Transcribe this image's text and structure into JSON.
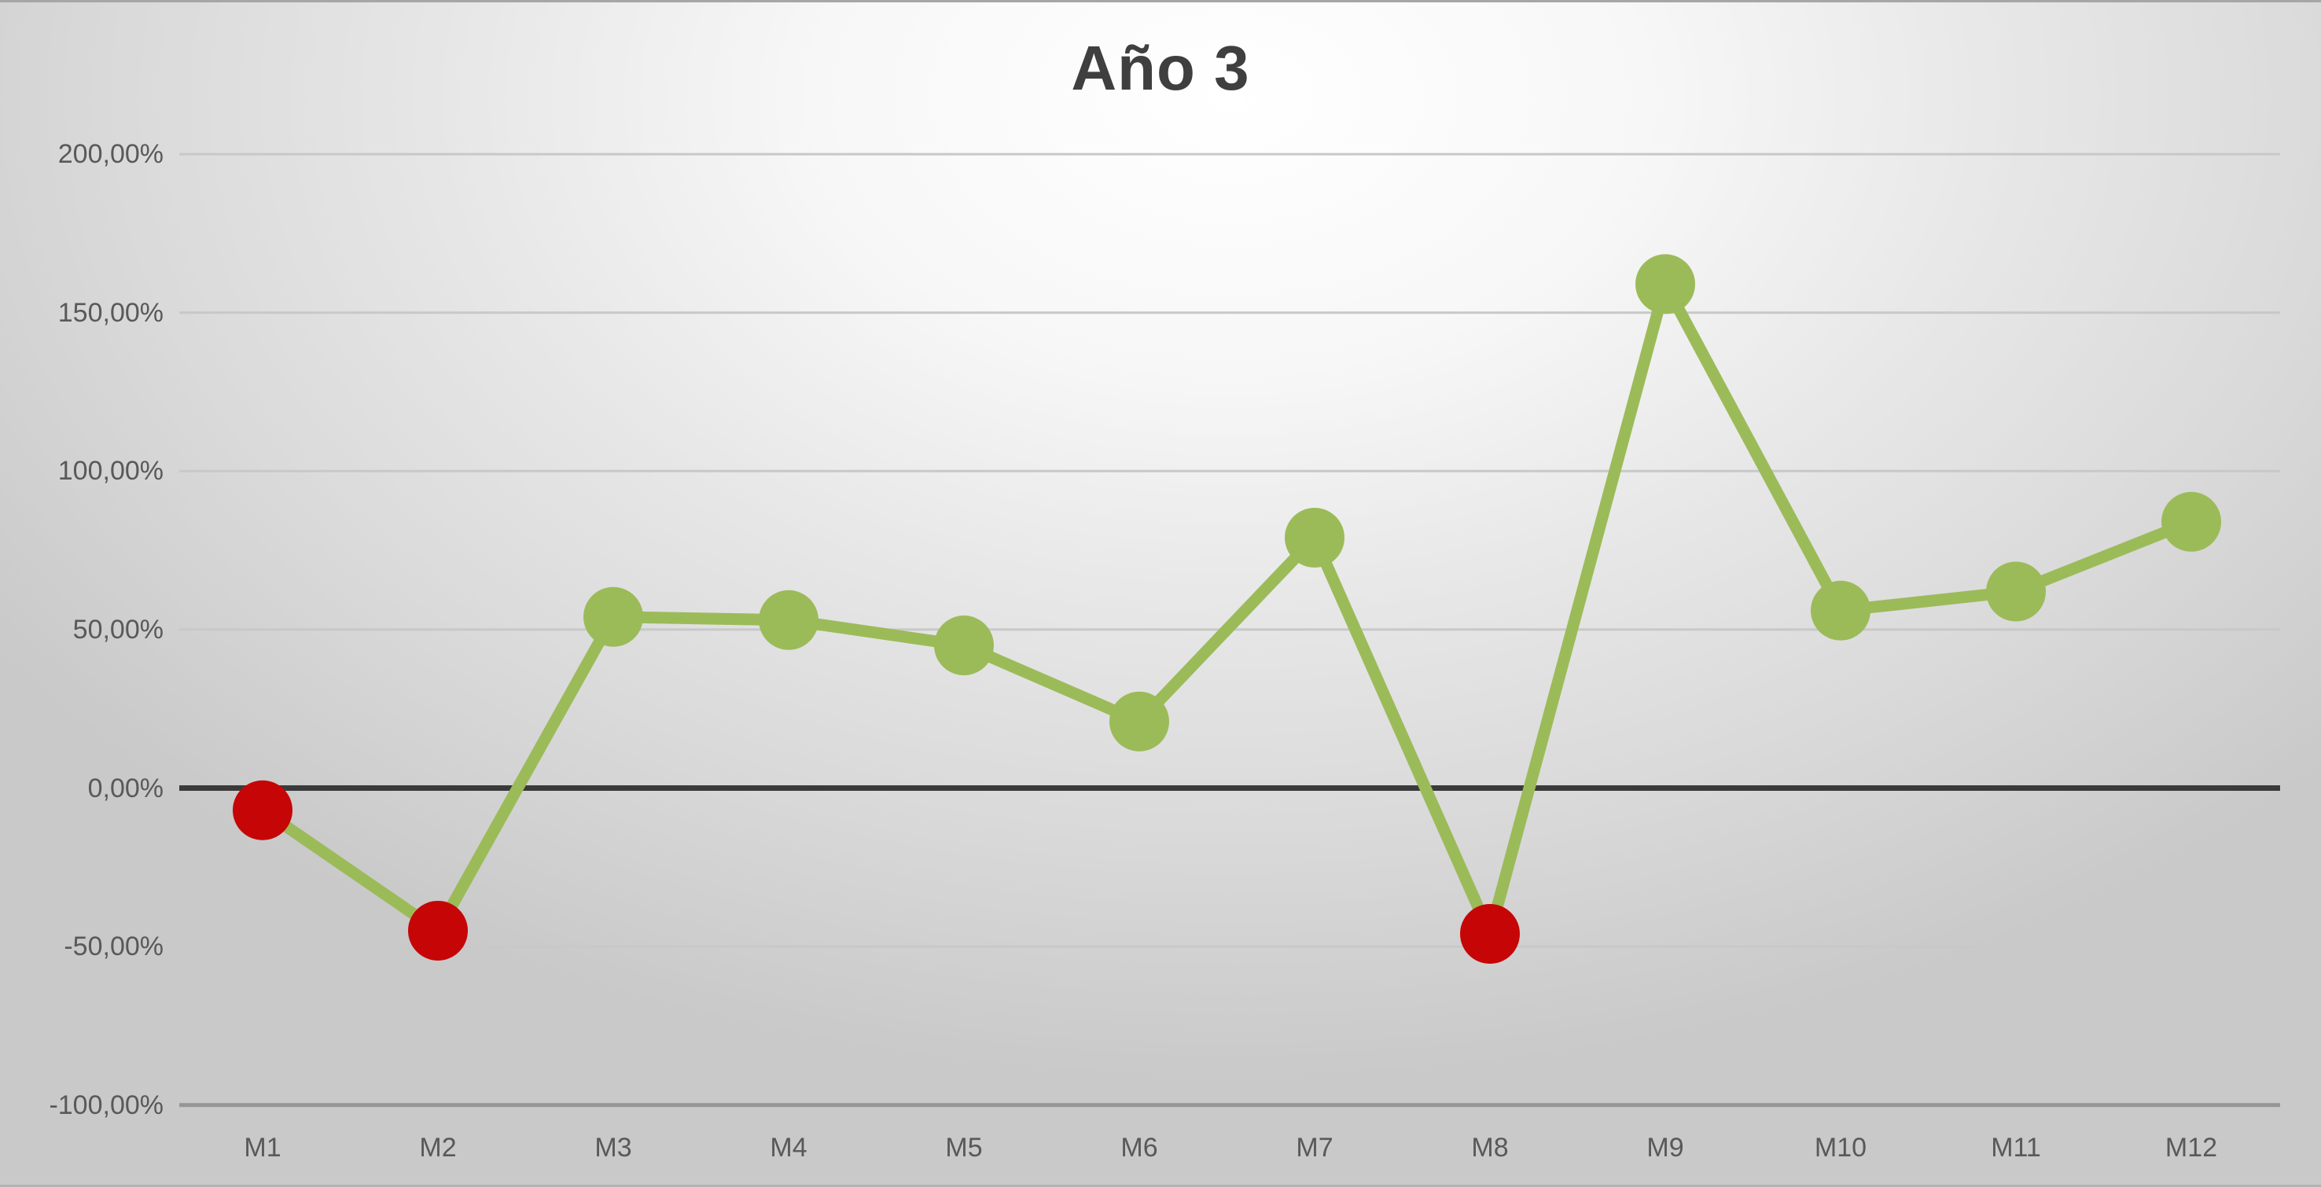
{
  "chart_data": {
    "type": "line",
    "title": "Año 3",
    "categories": [
      "M1",
      "M2",
      "M3",
      "M4",
      "M5",
      "M6",
      "M7",
      "M8",
      "M9",
      "M10",
      "M11",
      "M12"
    ],
    "series": [
      {
        "name": "Año 3",
        "values": [
          -7,
          -45,
          54,
          53,
          45,
          21,
          79,
          -46,
          159,
          56,
          62,
          84
        ]
      }
    ],
    "marker_rule": "marker is red when value is negative, green otherwise",
    "y_axis": {
      "min": -100,
      "max": 200,
      "tick_step": 50,
      "tick_labels": [
        "200,00%",
        "150,00%",
        "100,00%",
        "50,00%",
        "0,00%",
        "-50,00%",
        "-100,00%"
      ]
    },
    "x_axis": {
      "tick_labels": [
        "M1",
        "M2",
        "M3",
        "M4",
        "M5",
        "M6",
        "M7",
        "M8",
        "M9",
        "M10",
        "M11",
        "M12"
      ]
    },
    "grid": true,
    "legend": "none",
    "colors": {
      "line": "#9BBB59",
      "marker_positive": "#9BBB59",
      "marker_negative": "#C60606",
      "zero_axis": "#3A3A3A",
      "gridline": "#C8C8C8",
      "bottom_gridline": "#969696",
      "tick_label": "#595959",
      "title": "#3F3F3F"
    }
  }
}
